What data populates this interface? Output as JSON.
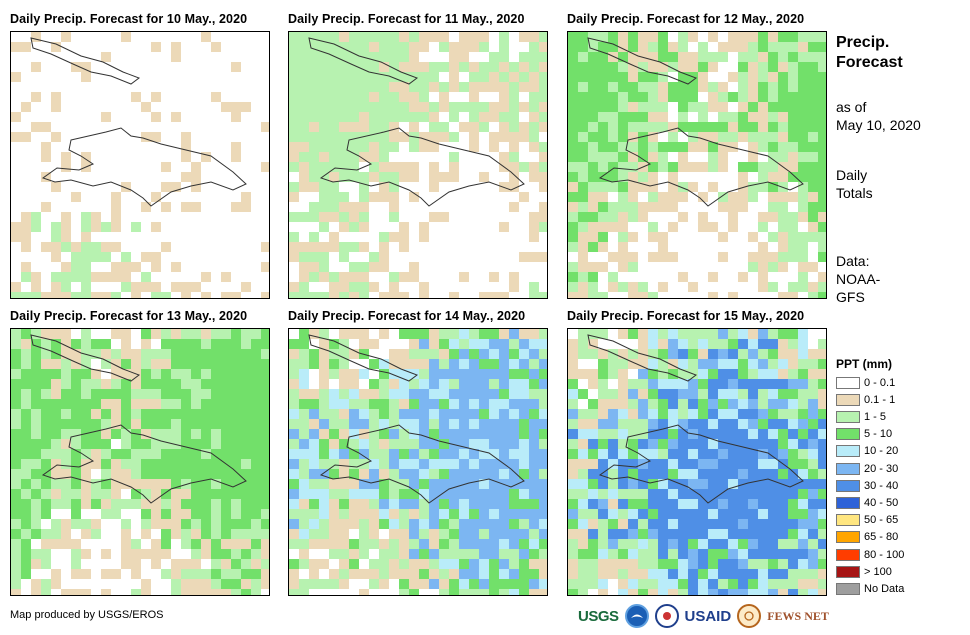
{
  "panels": [
    {
      "title": "Daily Precip. Forecast for 10 May., 2020",
      "intensity": 0
    },
    {
      "title": "Daily Precip. Forecast for 11 May., 2020",
      "intensity": 1
    },
    {
      "title": "Daily Precip. Forecast for 12 May., 2020",
      "intensity": 2
    },
    {
      "title": "Daily Precip. Forecast for 13 May., 2020",
      "intensity": 3
    },
    {
      "title": "Daily Precip. Forecast for 14 May., 2020",
      "intensity": 4
    },
    {
      "title": "Daily Precip. Forecast for 15 May., 2020",
      "intensity": 5
    }
  ],
  "side": {
    "title_line1": "Precip.",
    "title_line2": "Forecast",
    "asof_line1": "as of",
    "asof_line2": "May 10, 2020",
    "daily_line1": "Daily",
    "daily_line2": "Totals",
    "data_line1": "Data:",
    "data_line2": "NOAA-",
    "data_line3": "GFS"
  },
  "legend": {
    "title": "PPT (mm)",
    "items": [
      {
        "label": "0 - 0.1",
        "color": "#ffffff"
      },
      {
        "label": "0.1 - 1",
        "color": "#ecd9b8"
      },
      {
        "label": "1 - 5",
        "color": "#b7f2b0"
      },
      {
        "label": "5 - 10",
        "color": "#72e06a"
      },
      {
        "label": "10 - 20",
        "color": "#b9ecf9"
      },
      {
        "label": "20 - 30",
        "color": "#7cb6f2"
      },
      {
        "label": "30 - 40",
        "color": "#4f8fe6"
      },
      {
        "label": "40 - 50",
        "color": "#2e62d8"
      },
      {
        "label": "50 - 65",
        "color": "#ffe680"
      },
      {
        "label": "65 - 80",
        "color": "#ffa500"
      },
      {
        "label": "80 - 100",
        "color": "#ff3d00"
      },
      {
        "label": "> 100",
        "color": "#a61414"
      },
      {
        "label": "No Data",
        "color": "#9e9e9e"
      }
    ]
  },
  "credit": "Map produced by USGS/EROS",
  "logos": {
    "usgs": "USGS",
    "usaid": "USAID",
    "fews": "FEWS NET"
  }
}
